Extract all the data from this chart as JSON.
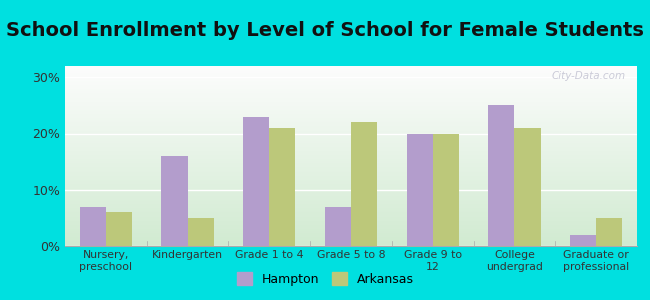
{
  "title": "School Enrollment by Level of School for Female Students",
  "categories": [
    "Nursery,\npreschool",
    "Kindergarten",
    "Grade 1 to 4",
    "Grade 5 to 8",
    "Grade 9 to\n12",
    "College\nundergrad",
    "Graduate or\nprofessional"
  ],
  "hampton": [
    7.0,
    16.0,
    23.0,
    7.0,
    20.0,
    25.0,
    2.0
  ],
  "arkansas": [
    6.0,
    5.0,
    21.0,
    22.0,
    20.0,
    21.0,
    5.0
  ],
  "hampton_color": "#b39dcc",
  "arkansas_color": "#bcc87a",
  "bg_outer": "#00e0e0",
  "ylim": [
    0,
    32
  ],
  "yticks": [
    0,
    10,
    20,
    30
  ],
  "ytick_labels": [
    "0%",
    "10%",
    "20%",
    "30%"
  ],
  "title_fontsize": 14,
  "legend_hampton": "Hampton",
  "legend_arkansas": "Arkansas",
  "watermark": "City-Data.com",
  "bar_width": 0.32
}
